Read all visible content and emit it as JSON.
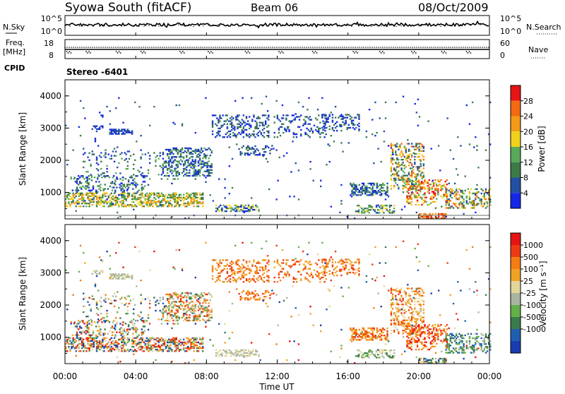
{
  "header": {
    "station": "Syowa South (fitACF)",
    "beam": "Beam 06",
    "date": "08/Oct/2009"
  },
  "strip_nsky": {
    "left_label": "N.Sky",
    "left_ticks": [
      "10^5",
      "10^0"
    ],
    "right_ticks": [
      "10^5",
      "10^0"
    ],
    "right_label": "N.Search"
  },
  "strip_freq": {
    "left_label_1": "Freq.",
    "left_label_2": "[MHz]",
    "left_ticks": [
      "18",
      "8"
    ],
    "right_ticks": [
      "60",
      "0"
    ],
    "right_label": "Nave"
  },
  "cpid": {
    "label": "CPID",
    "value": "Stereo -6401"
  },
  "colors": {
    "power_scale": [
      "#1428e6",
      "#234fa5",
      "#3d7a4a",
      "#58a85a",
      "#f0d21c",
      "#f39a18",
      "#f26a12",
      "#e61414"
    ],
    "velocity_scale": [
      "#1a3cb0",
      "#1f5fb0",
      "#3b7a4c",
      "#63b048",
      "#a9b5a0",
      "#e3d69a",
      "#f1a226",
      "#f57c14",
      "#ec3b14",
      "#e61414"
    ]
  },
  "chart_data": [
    {
      "type": "heatmap",
      "name": "power",
      "ylabel": "Slant Range [km]",
      "yticks": [
        "1000",
        "2000",
        "3000",
        "4000"
      ],
      "ylim": [
        180,
        4500
      ],
      "xlim": [
        "00:00",
        "24:00"
      ],
      "colorbar": {
        "label": "Power [dB]",
        "ticks": [
          "4",
          "8",
          "12",
          "16",
          "20",
          "24",
          "28"
        ],
        "range": [
          0,
          30
        ]
      }
    },
    {
      "type": "heatmap",
      "name": "velocity",
      "ylabel": "Slant Range [km]",
      "yticks": [
        "1000",
        "2000",
        "3000",
        "4000"
      ],
      "ylim": [
        180,
        4500
      ],
      "xlim": [
        "00:00",
        "24:00"
      ],
      "colorbar": {
        "label": "Velocity [m s⁻¹]",
        "ticks": [
          "1000",
          "500",
          "100",
          "25",
          "-25",
          "-100",
          "-500",
          "-1000"
        ]
      }
    }
  ],
  "xaxis": {
    "ticks": [
      "00:00",
      "04:00",
      "08:00",
      "12:00",
      "16:00",
      "20:00",
      "00:00"
    ],
    "label": "Time UT"
  }
}
